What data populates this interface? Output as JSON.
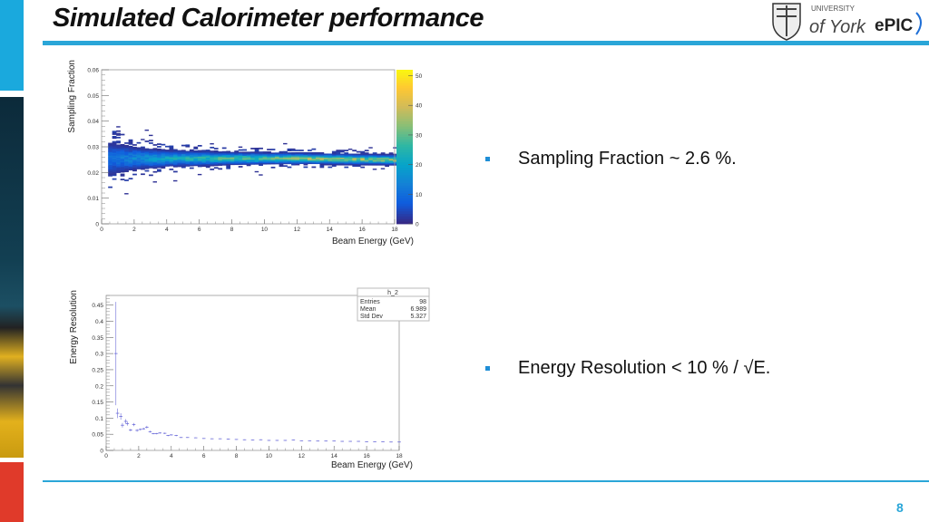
{
  "slide": {
    "title": "Simulated Calorimeter performance",
    "page_number": "8",
    "accent_color": "#2aa6d8",
    "bullets": [
      {
        "text": "Sampling Fraction ~ 2.6 %."
      },
      {
        "text": "Energy Resolution < 10 % / √E."
      }
    ],
    "logos": {
      "university": "UNIVERSITY",
      "york": "of York",
      "epic": "ePIC"
    }
  },
  "chart_data": [
    {
      "type": "heatmap",
      "xlabel": "Beam Energy (GeV)",
      "ylabel": "Sampling Fraction",
      "xlim": [
        0,
        18
      ],
      "ylim": [
        0,
        0.06
      ],
      "zlim": [
        0,
        52
      ],
      "x_ticks": [
        "0",
        "2",
        "4",
        "6",
        "8",
        "10",
        "12",
        "14",
        "16",
        "18"
      ],
      "y_ticks": [
        "0",
        "0.01",
        "0.02",
        "0.03",
        "0.04",
        "0.05",
        "0.06"
      ],
      "z_ticks": [
        "0",
        "10",
        "20",
        "30",
        "40",
        "50"
      ],
      "palette": [
        "#352a87",
        "#0f5cdd",
        "#1481d6",
        "#06a4ca",
        "#2eb7a4",
        "#87bf77",
        "#d1bb59",
        "#fec832",
        "#f9fb0e"
      ],
      "x_range_filled": [
        0.4,
        18
      ],
      "band": {
        "energy": [
          0.5,
          2,
          4,
          8,
          12,
          18
        ],
        "mean": [
          0.0255,
          0.0255,
          0.0255,
          0.0255,
          0.0255,
          0.025
        ],
        "sigma": [
          0.003,
          0.002,
          0.0014,
          0.001,
          0.0009,
          0.0008
        ]
      }
    },
    {
      "type": "scatter",
      "xlabel": "Beam Energy (GeV)",
      "ylabel": "Energy Resolution",
      "xlim": [
        0,
        18
      ],
      "ylim": [
        0,
        0.48
      ],
      "x_ticks": [
        "0",
        "2",
        "4",
        "6",
        "8",
        "10",
        "12",
        "14",
        "16",
        "18"
      ],
      "y_ticks": [
        "0",
        "0.05",
        "0.1",
        "0.15",
        "0.2",
        "0.25",
        "0.3",
        "0.35",
        "0.4",
        "0.45"
      ],
      "marker_color": "#6a6ad8",
      "x": [
        0.6,
        0.7,
        0.9,
        1.0,
        1.2,
        1.3,
        1.5,
        1.7,
        1.9,
        2.1,
        2.3,
        2.5,
        2.7,
        2.9,
        3.1,
        3.3,
        3.6,
        3.8,
        4.0,
        4.3,
        4.6,
        5.0,
        5.5,
        6.0,
        6.5,
        7.0,
        7.5,
        8.0,
        8.5,
        9.0,
        9.5,
        10.0,
        10.5,
        11.0,
        11.5,
        12.0,
        12.5,
        13.0,
        13.5,
        14.0,
        14.5,
        15.0,
        15.5,
        16.0,
        16.5,
        17.0,
        17.5,
        18.0
      ],
      "y": [
        0.3,
        0.115,
        0.105,
        0.078,
        0.09,
        0.083,
        0.063,
        0.08,
        0.062,
        0.065,
        0.067,
        0.072,
        0.058,
        0.052,
        0.052,
        0.054,
        0.053,
        0.046,
        0.048,
        0.046,
        0.04,
        0.04,
        0.039,
        0.037,
        0.036,
        0.036,
        0.035,
        0.034,
        0.033,
        0.032,
        0.033,
        0.031,
        0.031,
        0.031,
        0.032,
        0.03,
        0.03,
        0.029,
        0.029,
        0.029,
        0.028,
        0.028,
        0.028,
        0.027,
        0.027,
        0.027,
        0.026,
        0.026
      ],
      "yerr": [
        0.16,
        0.015,
        0.01,
        0.007,
        0.007,
        0.006,
        0.004,
        0.005,
        0.004,
        0.003,
        0.003,
        0.004,
        0.003,
        0.002,
        0.002,
        0.002,
        0.002,
        0.002,
        0.002,
        0.002,
        0.001,
        0.001,
        0.001,
        0.001,
        0.001,
        0.001,
        0.001,
        0.001,
        0.001,
        0.001,
        0.001,
        0.001,
        0.001,
        0.001,
        0.001,
        0.001,
        0.001,
        0.001,
        0.001,
        0.001,
        0.001,
        0.001,
        0.001,
        0.001,
        0.001,
        0.001,
        0.001,
        0.001
      ],
      "stats_box": {
        "name": "h_2",
        "rows": [
          {
            "label": "Entries",
            "value": "98"
          },
          {
            "label": "Mean",
            "value": "6.989"
          },
          {
            "label": "Std Dev",
            "value": "5.327"
          }
        ]
      }
    }
  ]
}
